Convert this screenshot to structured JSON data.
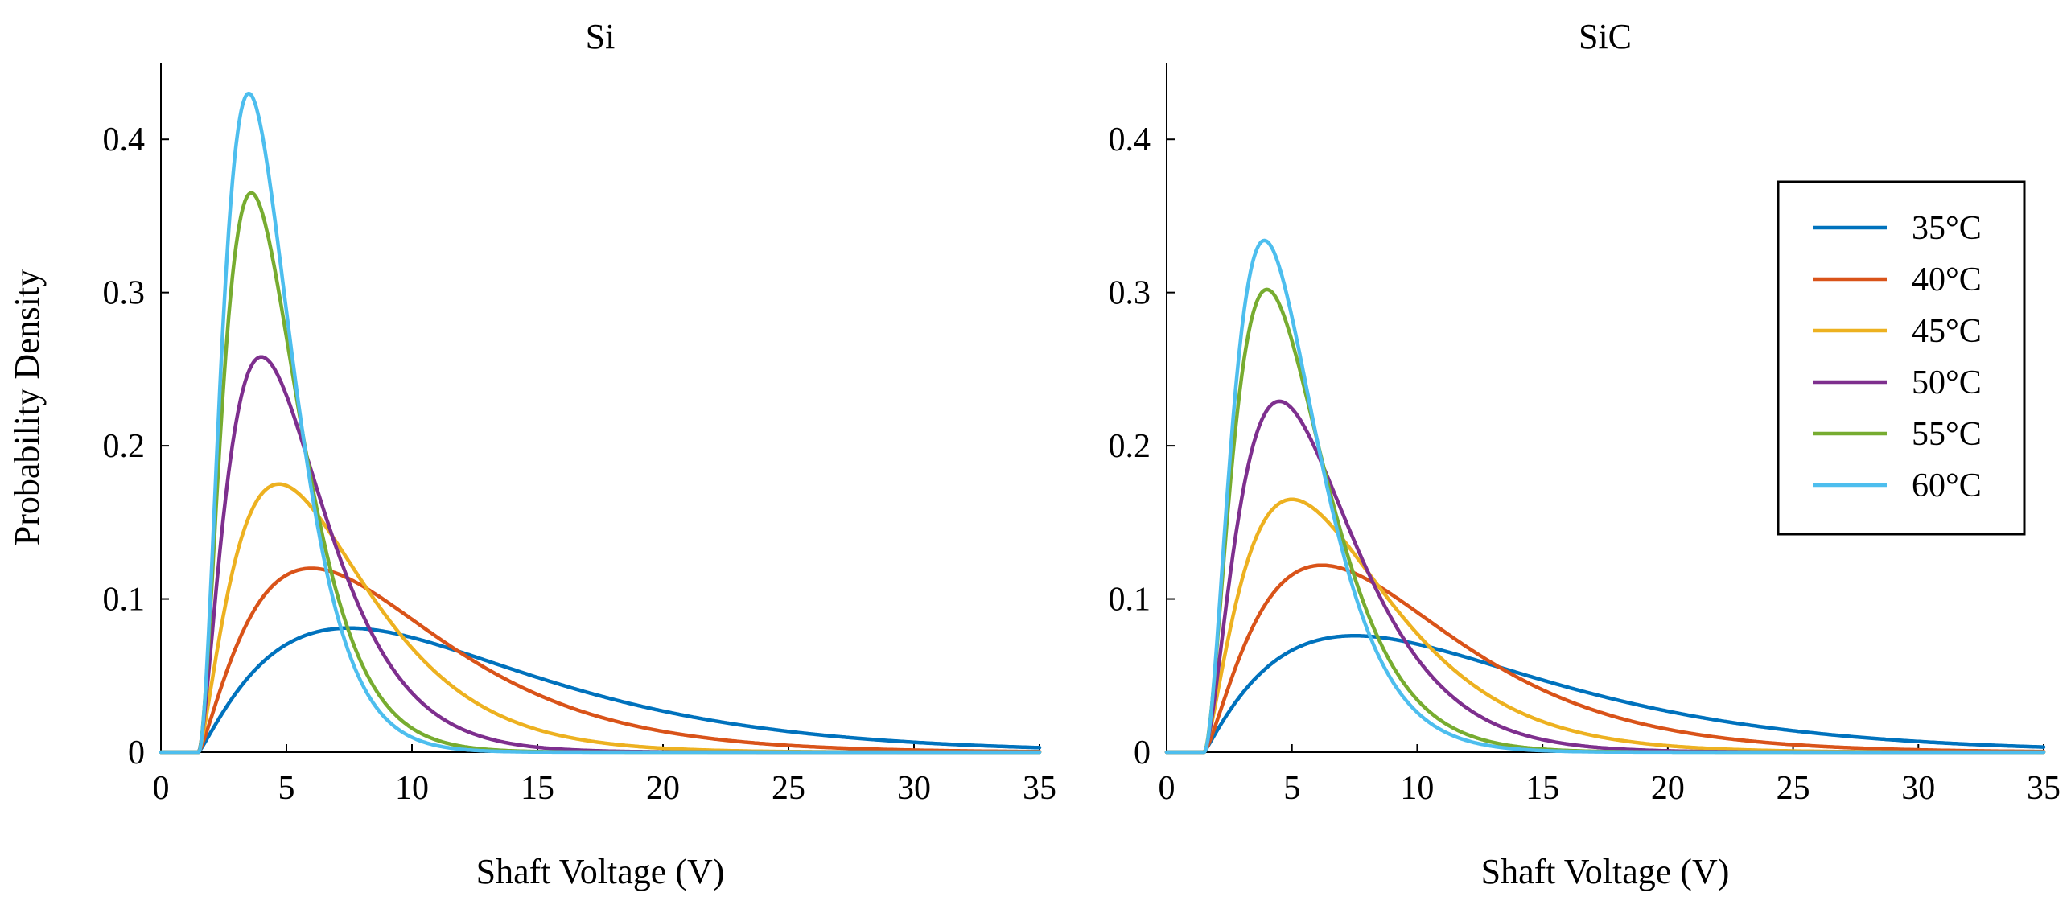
{
  "chart_data": [
    {
      "type": "line",
      "title": "Si",
      "xlabel": "Shaft Voltage (V)",
      "ylabel": "Probability Density",
      "xlim": [
        0,
        35
      ],
      "ylim": [
        0,
        0.45
      ],
      "xticks": [
        "0",
        "5",
        "10",
        "15",
        "20",
        "25",
        "30",
        "35"
      ],
      "yticks": [
        "0",
        "0.1",
        "0.2",
        "0.3",
        "0.4"
      ],
      "series": [
        {
          "name": "35°C",
          "color": "#0072BD",
          "peak_x": 7.5,
          "peak_y": 0.081,
          "onset": 1.5,
          "tail_scale": 5.2
        },
        {
          "name": "40°C",
          "color": "#D95319",
          "peak_x": 6.0,
          "peak_y": 0.12,
          "onset": 1.5,
          "tail_scale": 3.5
        },
        {
          "name": "45°C",
          "color": "#EDB120",
          "peak_x": 4.7,
          "peak_y": 0.175,
          "onset": 1.5,
          "tail_scale": 2.3
        },
        {
          "name": "50°C",
          "color": "#7E2F8E",
          "peak_x": 4.0,
          "peak_y": 0.258,
          "onset": 1.5,
          "tail_scale": 1.55
        },
        {
          "name": "55°C",
          "color": "#77AC30",
          "peak_x": 3.6,
          "peak_y": 0.365,
          "onset": 1.5,
          "tail_scale": 1.1
        },
        {
          "name": "60°C",
          "color": "#4DBEEE",
          "peak_x": 3.5,
          "peak_y": 0.43,
          "onset": 1.5,
          "tail_scale": 0.95
        }
      ]
    },
    {
      "type": "line",
      "title": "SiC",
      "xlabel": "Shaft Voltage (V)",
      "ylabel": "",
      "xlim": [
        0,
        35
      ],
      "ylim": [
        0,
        0.45
      ],
      "xticks": [
        "0",
        "5",
        "10",
        "15",
        "20",
        "25",
        "30",
        "35"
      ],
      "yticks": [
        "0",
        "0.1",
        "0.2",
        "0.3",
        "0.4"
      ],
      "legend": "right",
      "series": [
        {
          "name": "35°C",
          "color": "#0072BD",
          "peak_x": 7.5,
          "peak_y": 0.076,
          "onset": 1.5,
          "tail_scale": 5.5
        },
        {
          "name": "40°C",
          "color": "#D95319",
          "peak_x": 6.2,
          "peak_y": 0.122,
          "onset": 1.5,
          "tail_scale": 3.5
        },
        {
          "name": "45°C",
          "color": "#EDB120",
          "peak_x": 5.0,
          "peak_y": 0.165,
          "onset": 1.5,
          "tail_scale": 2.5
        },
        {
          "name": "50°C",
          "color": "#7E2F8E",
          "peak_x": 4.5,
          "peak_y": 0.229,
          "onset": 1.5,
          "tail_scale": 1.8
        },
        {
          "name": "55°C",
          "color": "#77AC30",
          "peak_x": 4.0,
          "peak_y": 0.302,
          "onset": 1.5,
          "tail_scale": 1.35
        },
        {
          "name": "60°C",
          "color": "#4DBEEE",
          "peak_x": 3.9,
          "peak_y": 0.334,
          "onset": 1.5,
          "tail_scale": 1.2
        }
      ]
    }
  ]
}
